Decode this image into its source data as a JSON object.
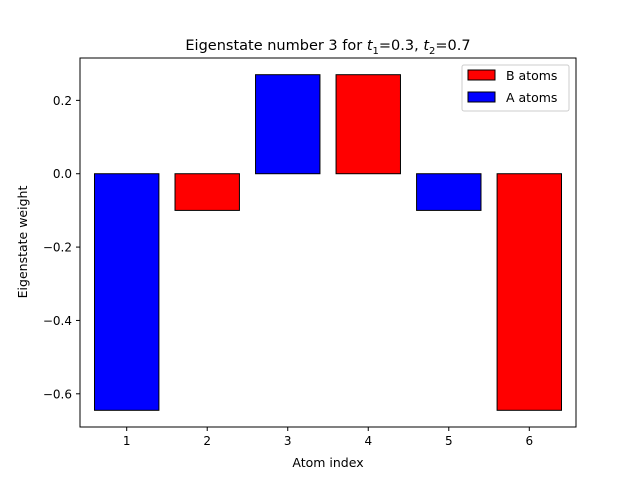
{
  "chart_data": {
    "type": "bar",
    "title": {
      "prefix": "Eigenstate number 3 for ",
      "t1_symbol": "t",
      "t1_sub": "1",
      "t1_value": "=0.3, ",
      "t2_symbol": "t",
      "t2_sub": "2",
      "t2_value": "=0.7"
    },
    "xlabel": "Atom index",
    "ylabel": "Eigenstate weight",
    "categories": [
      "1",
      "2",
      "3",
      "4",
      "5",
      "6"
    ],
    "x": [
      1,
      2,
      3,
      4,
      5,
      6
    ],
    "values": [
      -0.645,
      -0.1,
      0.27,
      0.27,
      -0.1,
      -0.645
    ],
    "atom_type": [
      "A",
      "B",
      "A",
      "B",
      "A",
      "B"
    ],
    "series": [
      {
        "name": "B atoms",
        "color": "#ff0000",
        "x": [
          2,
          4,
          6
        ],
        "values": [
          -0.1,
          0.27,
          -0.645
        ]
      },
      {
        "name": "A atoms",
        "color": "#0000ff",
        "x": [
          1,
          3,
          5
        ],
        "values": [
          -0.645,
          0.27,
          -0.1
        ]
      }
    ],
    "xlim": [
      0.42,
      6.58
    ],
    "ylim": [
      -0.6905,
      0.3155
    ],
    "yticks": [
      0.2,
      0.0,
      -0.2,
      -0.4,
      -0.6
    ],
    "ytick_labels": [
      "0.2",
      "0.0",
      "−0.2",
      "−0.4",
      "−0.6"
    ],
    "bar_width": 0.8,
    "grid": false,
    "legend_placement": "top-right"
  }
}
